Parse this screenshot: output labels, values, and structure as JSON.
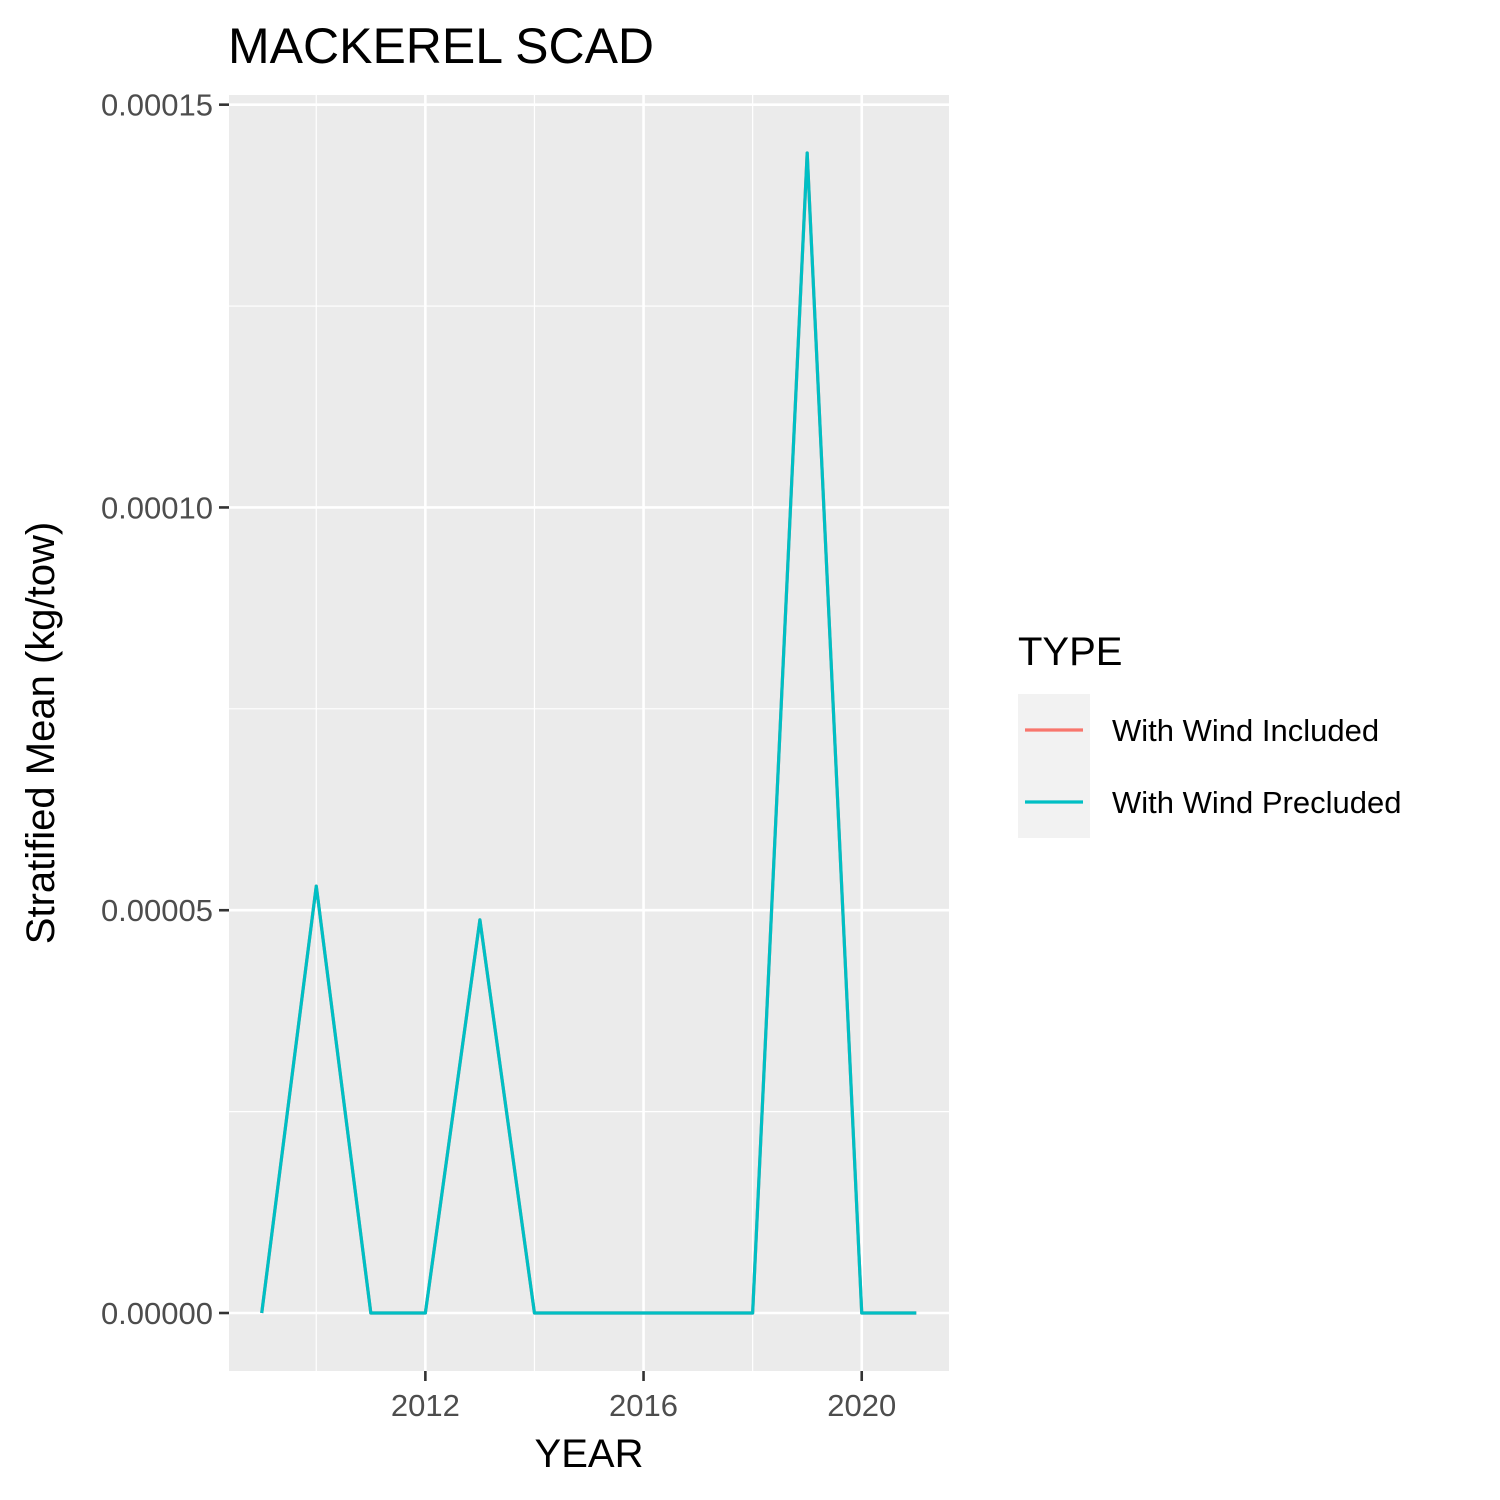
{
  "chart_data": {
    "type": "line",
    "title": "MACKEREL SCAD",
    "xlabel": "YEAR",
    "ylabel": "Stratified Mean (kg/tow)",
    "x": [
      2009,
      2010,
      2011,
      2012,
      2013,
      2014,
      2015,
      2016,
      2017,
      2018,
      2019,
      2020,
      2021
    ],
    "series": [
      {
        "name": "With Wind Included",
        "color": "#F8766D",
        "values": [
          0,
          5.3e-05,
          0,
          0,
          4.88e-05,
          0,
          0,
          0,
          0,
          0,
          0.000144,
          0,
          0
        ]
      },
      {
        "name": "With Wind Precluded",
        "color": "#00BFC4",
        "values": [
          0,
          5.3e-05,
          0,
          0,
          4.88e-05,
          0,
          0,
          0,
          0,
          0,
          0.000144,
          0,
          0
        ]
      }
    ],
    "xlim": [
      2008.4,
      2021.6
    ],
    "ylim": [
      -7.2e-06,
      0.0001512
    ],
    "x_ticks": [
      2012,
      2016,
      2020
    ],
    "x_tick_labels": [
      "2012",
      "2016",
      "2020"
    ],
    "y_ticks": [
      0,
      5e-05,
      0.0001,
      0.00015
    ],
    "y_tick_labels": [
      "0.00000",
      "0.00005",
      "0.00010",
      "0.00015"
    ],
    "grid": true,
    "legend": {
      "title": "TYPE",
      "position": "right"
    },
    "panel_background": "#EBEBEB",
    "legend_key_background": "#F2F2F2"
  }
}
